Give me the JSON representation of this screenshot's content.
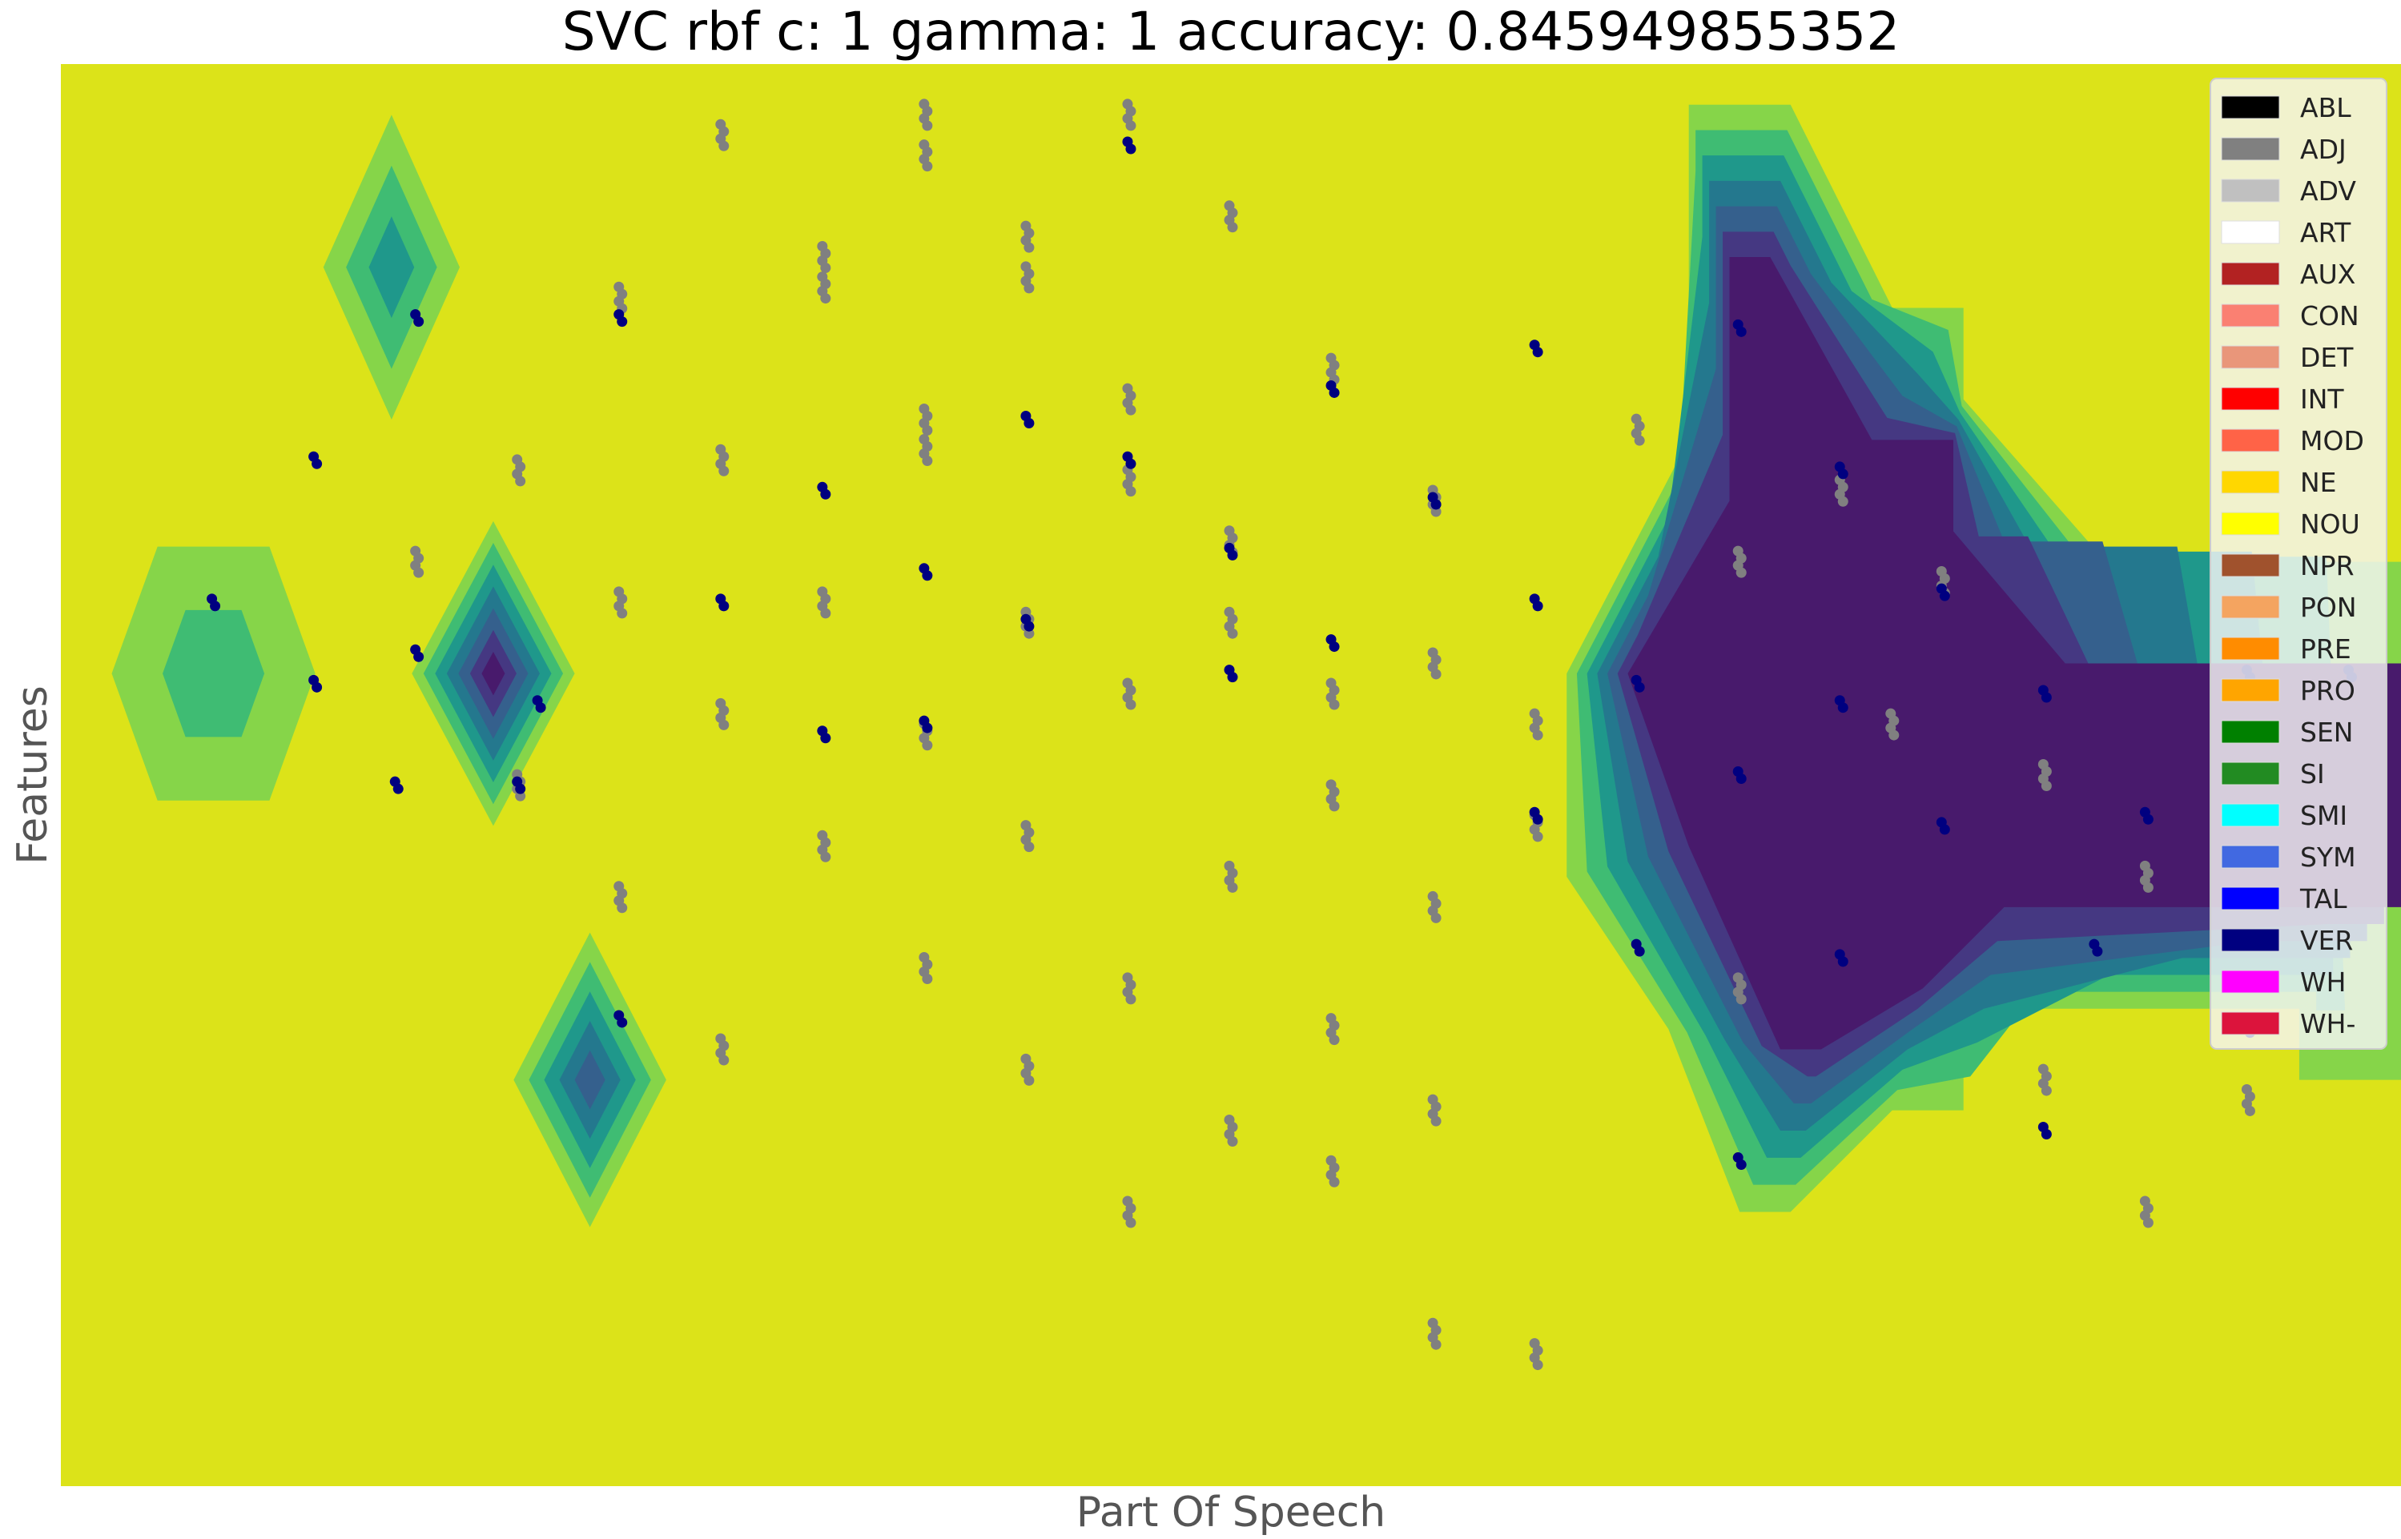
{
  "chart_data": {
    "type": "scatter",
    "subtype": "decision-surface",
    "title": "SVC rbf c: 1 gamma: 1 accuracy: 0.845949855352",
    "xlabel": "Part Of Speech",
    "ylabel": "Features",
    "xticks": false,
    "yticks": false,
    "grid": false,
    "xlim": [
      -0.5,
      22.5
    ],
    "ylim": [
      -0.5,
      13.5
    ],
    "legend_position": "top-right",
    "colors": {
      "background_class": "#dce319",
      "contour_levels": [
        "#dce319",
        "#86d549",
        "#3fbc73",
        "#1f988b",
        "#24788e",
        "#35608d",
        "#453882",
        "#481a6c"
      ],
      "points_nonverb": "#808080",
      "points_verb": "#000080"
    },
    "legend": [
      {
        "label": "ABL",
        "color": "#000000"
      },
      {
        "label": "ADJ",
        "color": "#808080"
      },
      {
        "label": "ADV",
        "color": "#c0c0c0"
      },
      {
        "label": "ART",
        "color": "#ffffff"
      },
      {
        "label": "AUX",
        "color": "#b22222"
      },
      {
        "label": "CON",
        "color": "#fa8072"
      },
      {
        "label": "DET",
        "color": "#e9967a"
      },
      {
        "label": "INT",
        "color": "#ff0000"
      },
      {
        "label": "MOD",
        "color": "#ff6347"
      },
      {
        "label": "NE",
        "color": "#ffd700"
      },
      {
        "label": "NOU",
        "color": "#ffff00"
      },
      {
        "label": "NPR",
        "color": "#a0522d"
      },
      {
        "label": "PON",
        "color": "#f4a460"
      },
      {
        "label": "PRE",
        "color": "#ff8c00"
      },
      {
        "label": "PRO",
        "color": "#ffa500"
      },
      {
        "label": "SEN",
        "color": "#008000"
      },
      {
        "label": "SI",
        "color": "#228b22"
      },
      {
        "label": "SMI",
        "color": "#00ffff"
      },
      {
        "label": "SYM",
        "color": "#4169e1"
      },
      {
        "label": "TAL",
        "color": "#0000ff"
      },
      {
        "label": "VER",
        "color": "#000080"
      },
      {
        "label": "WH",
        "color": "#ff00ff"
      },
      {
        "label": "WH-",
        "color": "#dc143c"
      }
    ],
    "regions": [
      {
        "name": "diamond-upper-left",
        "shape": "diamond",
        "center": [
          2.75,
          11.5
        ],
        "outer_half_width": 0.67,
        "outer_half_height": 1.5,
        "levels": 3
      },
      {
        "name": "hexagon-left",
        "shape": "hexagon",
        "center": [
          1.0,
          7.5
        ],
        "outer_half_width": 1.0,
        "outer_half_height": 1.25,
        "levels": 2
      },
      {
        "name": "diamond-center-left",
        "shape": "diamond",
        "center": [
          3.75,
          7.5
        ],
        "outer_half_width": 0.8,
        "outer_half_height": 1.5,
        "levels": 7
      },
      {
        "name": "diamond-lower-left",
        "shape": "diamond",
        "center": [
          4.7,
          3.5
        ],
        "outer_half_width": 0.75,
        "outer_half_height": 1.45,
        "levels": 5
      },
      {
        "name": "right-purple-region",
        "shape": "polygon",
        "outline": [
          [
            15.5,
            13.1
          ],
          [
            16.5,
            13.1
          ],
          [
            17.5,
            11.1
          ],
          [
            18.2,
            11.1
          ],
          [
            18.2,
            10.2
          ],
          [
            19.6,
            8.6
          ],
          [
            22.5,
            8.6
          ],
          [
            22.5,
            3.5
          ],
          [
            21.5,
            3.5
          ],
          [
            21.5,
            4.2
          ],
          [
            18.2,
            4.2
          ],
          [
            18.2,
            3.2
          ],
          [
            17.5,
            3.2
          ],
          [
            16.5,
            2.2
          ],
          [
            16.0,
            2.2
          ],
          [
            15.3,
            4.0
          ],
          [
            14.3,
            5.5
          ],
          [
            14.3,
            7.5
          ],
          [
            15.5,
            9.8
          ],
          [
            15.5,
            13.1
          ]
        ],
        "inner": [
          [
            15.9,
            11.6
          ],
          [
            16.3,
            11.6
          ],
          [
            17.3,
            9.8
          ],
          [
            18.1,
            9.8
          ],
          [
            18.1,
            8.9
          ],
          [
            19.2,
            7.6
          ],
          [
            22.5,
            7.6
          ],
          [
            22.5,
            5.2
          ],
          [
            18.6,
            5.2
          ],
          [
            17.8,
            4.4
          ],
          [
            16.8,
            3.8
          ],
          [
            16.4,
            3.8
          ],
          [
            15.5,
            5.8
          ],
          [
            14.9,
            7.5
          ],
          [
            15.9,
            9.2
          ]
        ],
        "levels": 7
      }
    ],
    "series": [
      {
        "name": "ADJ",
        "color": "#808080",
        "points": [
          [
            6.0,
            12.8
          ],
          [
            8.0,
            13.0
          ],
          [
            10.0,
            13.0
          ],
          [
            8.0,
            12.6
          ],
          [
            11.0,
            12.0
          ],
          [
            9.0,
            11.8
          ],
          [
            9.0,
            11.4
          ],
          [
            7.0,
            11.6
          ],
          [
            7.0,
            11.3
          ],
          [
            5.0,
            11.2
          ],
          [
            10.0,
            10.2
          ],
          [
            12.0,
            10.5
          ],
          [
            8.0,
            10.0
          ],
          [
            8.0,
            9.7
          ],
          [
            6.0,
            9.6
          ],
          [
            4.0,
            9.5
          ],
          [
            10.0,
            9.4
          ],
          [
            3.0,
            8.6
          ],
          [
            13.0,
            9.2
          ],
          [
            11.0,
            8.8
          ],
          [
            7.0,
            8.2
          ],
          [
            9.0,
            8.0
          ],
          [
            11.0,
            8.0
          ],
          [
            5.0,
            8.2
          ],
          [
            13.0,
            7.6
          ],
          [
            14.0,
            7.0
          ],
          [
            10.0,
            7.3
          ],
          [
            12.0,
            7.3
          ],
          [
            6.0,
            7.1
          ],
          [
            8.0,
            6.9
          ],
          [
            4.0,
            6.4
          ],
          [
            12.0,
            6.3
          ],
          [
            14.0,
            6.0
          ],
          [
            7.0,
            5.8
          ],
          [
            9.0,
            5.9
          ],
          [
            11.0,
            5.5
          ],
          [
            13.0,
            5.2
          ],
          [
            5.0,
            5.3
          ],
          [
            8.0,
            4.6
          ],
          [
            10.0,
            4.4
          ],
          [
            12.0,
            4.0
          ],
          [
            6.0,
            3.8
          ],
          [
            9.0,
            3.6
          ],
          [
            11.0,
            3.0
          ],
          [
            13.0,
            3.2
          ],
          [
            10.0,
            2.2
          ],
          [
            12.0,
            2.6
          ],
          [
            13.0,
            1.0
          ],
          [
            14.0,
            0.8
          ],
          [
            16.0,
            4.4
          ],
          [
            16.0,
            8.6
          ],
          [
            17.0,
            9.3
          ],
          [
            17.5,
            7.0
          ],
          [
            18.0,
            8.4
          ],
          [
            19.0,
            6.5
          ],
          [
            19.0,
            3.5
          ],
          [
            20.0,
            5.5
          ],
          [
            20.0,
            2.2
          ],
          [
            21.0,
            3.3
          ],
          [
            15.0,
            9.9
          ]
        ]
      },
      {
        "name": "VER",
        "color": "#000080",
        "points": [
          [
            2.0,
            9.6
          ],
          [
            3.0,
            11.0
          ],
          [
            1.0,
            8.2
          ],
          [
            2.0,
            7.4
          ],
          [
            2.8,
            6.4
          ],
          [
            4.2,
            7.2
          ],
          [
            5.0,
            4.1
          ],
          [
            4.0,
            6.4
          ],
          [
            3.0,
            7.7
          ],
          [
            5.0,
            11.0
          ],
          [
            6.0,
            8.2
          ],
          [
            7.0,
            9.3
          ],
          [
            7.0,
            6.9
          ],
          [
            8.0,
            8.5
          ],
          [
            8.0,
            7.0
          ],
          [
            9.0,
            10.0
          ],
          [
            9.0,
            8.0
          ],
          [
            10.0,
            12.7
          ],
          [
            10.0,
            9.6
          ],
          [
            11.0,
            8.7
          ],
          [
            11.0,
            7.5
          ],
          [
            12.0,
            10.3
          ],
          [
            12.0,
            7.8
          ],
          [
            13.0,
            9.2
          ],
          [
            14.0,
            10.7
          ],
          [
            14.0,
            8.2
          ],
          [
            14.0,
            6.1
          ],
          [
            15.0,
            7.4
          ],
          [
            15.0,
            4.8
          ],
          [
            16.0,
            10.9
          ],
          [
            16.0,
            6.5
          ],
          [
            16.0,
            2.7
          ],
          [
            17.0,
            9.5
          ],
          [
            17.0,
            7.2
          ],
          [
            17.0,
            4.7
          ],
          [
            18.0,
            8.3
          ],
          [
            18.0,
            6.0
          ],
          [
            19.0,
            7.3
          ],
          [
            19.0,
            3.0
          ],
          [
            19.5,
            4.8
          ],
          [
            20.0,
            6.1
          ],
          [
            21.0,
            7.5
          ],
          [
            21.0,
            4.0
          ],
          [
            22.0,
            7.5
          ]
        ]
      }
    ]
  }
}
